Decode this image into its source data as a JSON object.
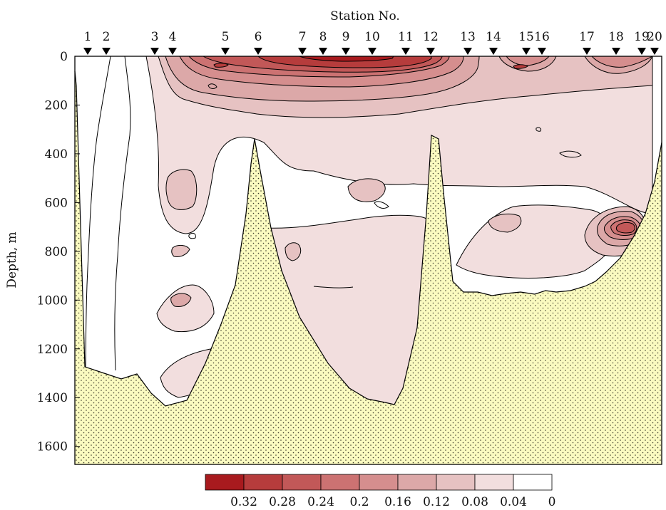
{
  "chart_data": {
    "type": "heatmap",
    "title": "Station No.",
    "ylabel": "Depth, m",
    "xlabel": "",
    "ylim": [
      0,
      1660
    ],
    "y_inverted": true,
    "y_ticks": [
      0,
      200,
      400,
      600,
      800,
      1000,
      1200,
      1400,
      1600
    ],
    "stations": [
      "1",
      "2",
      "3",
      "4",
      "5",
      "6",
      "7",
      "8",
      "9",
      "10",
      "11",
      "12",
      "13",
      "14",
      "15",
      "16",
      "17",
      "18",
      "19",
      "20"
    ],
    "station_marker": "down-triangle",
    "colorbar": {
      "levels": [
        0.32,
        0.28,
        0.24,
        0.2,
        0.16,
        0.12,
        0.08,
        0.04,
        0
      ],
      "tick_labels": [
        "0.32",
        "0.28",
        "0.24",
        "0.2",
        "0.16",
        "0.12",
        "0.08",
        "0.04",
        "0"
      ],
      "colors": [
        "#a81a1e",
        "#b63c3c",
        "#c25858",
        "#cc7272",
        "#d58e8e",
        "#dca8a8",
        "#e6c2c2",
        "#f2dede",
        "#ffffff"
      ]
    },
    "seafloor": {
      "fill_color": "#fafac0",
      "stroke_color": "#000000",
      "pattern": "dots"
    },
    "background_color": "#ffffff",
    "contour_line_color": "#000000"
  }
}
